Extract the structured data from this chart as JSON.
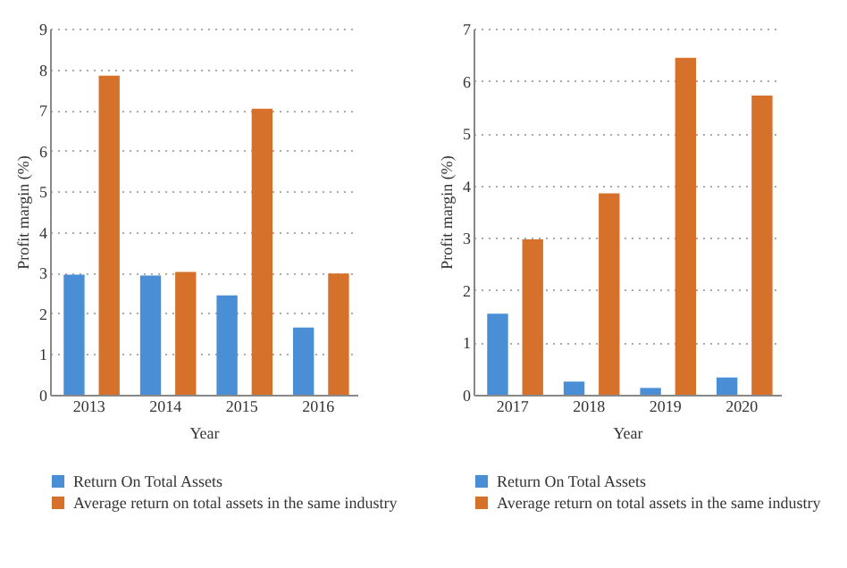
{
  "chart_data": [
    {
      "type": "bar",
      "xlabel": "Year",
      "ylabel": "Profit margin (%)",
      "categories": [
        "2013",
        "2014",
        "2015",
        "2016"
      ],
      "series": [
        {
          "name": "Return On Total Assets",
          "color": "#4a8fd6",
          "values": [
            2.95,
            2.93,
            2.44,
            1.65
          ]
        },
        {
          "name": "Average return on total assets in the same industry",
          "color": "#d5712a",
          "values": [
            7.84,
            3.02,
            7.03,
            2.98
          ]
        }
      ],
      "ylim": [
        0,
        9
      ],
      "yticks": [
        0,
        1,
        2,
        3,
        4,
        5,
        6,
        7,
        8,
        9
      ],
      "grid": "y",
      "legend": "bottom"
    },
    {
      "type": "bar",
      "xlabel": "Year",
      "ylabel": "Profit margin (%)",
      "categories": [
        "2017",
        "2018",
        "2019",
        "2020"
      ],
      "series": [
        {
          "name": "Return On Total Assets",
          "color": "#4a8fd6",
          "values": [
            1.55,
            0.25,
            0.13,
            0.33
          ]
        },
        {
          "name": "Average return on total assets in the same industry",
          "color": "#d5712a",
          "values": [
            2.97,
            3.85,
            6.44,
            5.72
          ]
        }
      ],
      "ylim": [
        0,
        7
      ],
      "yticks": [
        0,
        1,
        2,
        3,
        4,
        5,
        6,
        7
      ],
      "grid": "y",
      "legend": "bottom"
    }
  ]
}
